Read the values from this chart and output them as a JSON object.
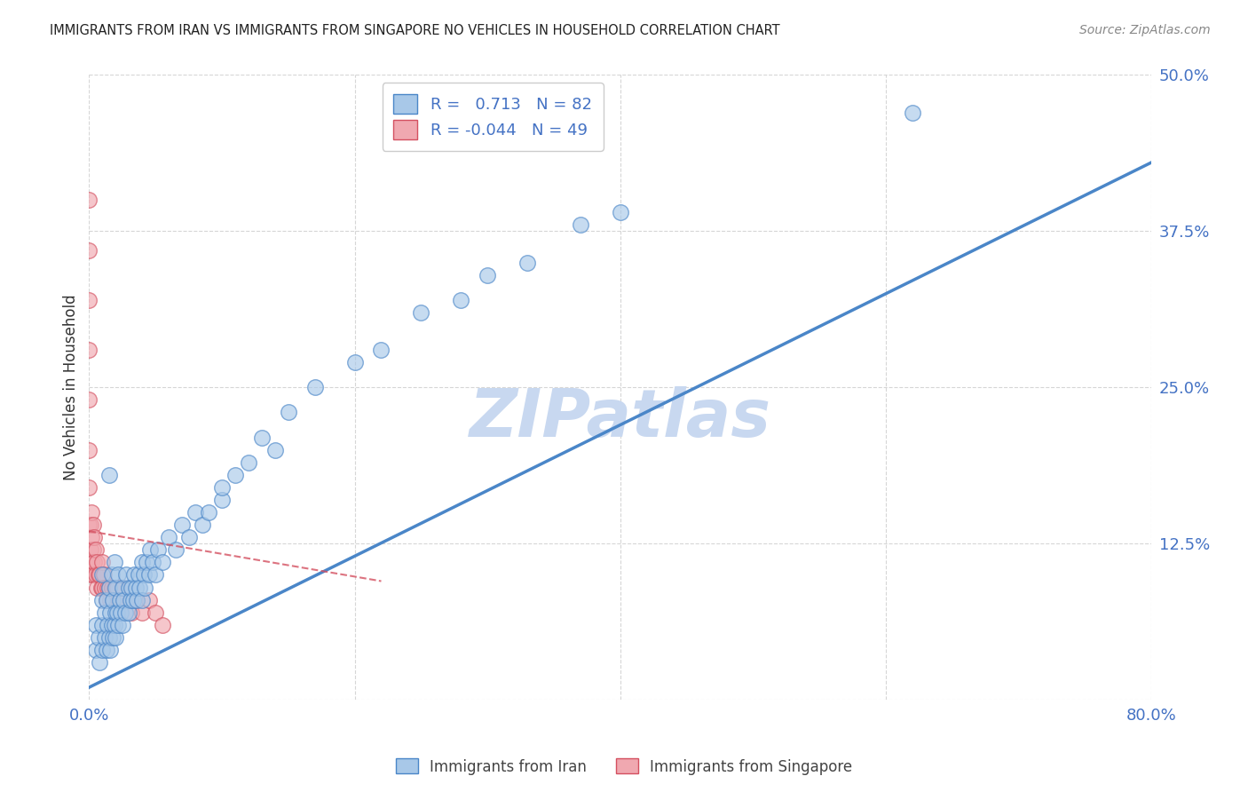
{
  "title": "IMMIGRANTS FROM IRAN VS IMMIGRANTS FROM SINGAPORE NO VEHICLES IN HOUSEHOLD CORRELATION CHART",
  "source": "Source: ZipAtlas.com",
  "tick_color": "#4472c4",
  "ylabel": "No Vehicles in Household",
  "xlim": [
    0.0,
    0.8
  ],
  "ylim": [
    0.0,
    0.5
  ],
  "xticks": [
    0.0,
    0.2,
    0.4,
    0.6,
    0.8
  ],
  "yticks": [
    0.0,
    0.125,
    0.25,
    0.375,
    0.5
  ],
  "xtick_labels": [
    "0.0%",
    "",
    "",
    "",
    "80.0%"
  ],
  "ytick_labels": [
    "",
    "12.5%",
    "25.0%",
    "37.5%",
    "50.0%"
  ],
  "iran_color": "#4a86c8",
  "iran_color_fill": "#a8c8e8",
  "singapore_color": "#d45060",
  "singapore_color_fill": "#f0a8b0",
  "iran_R": 0.713,
  "iran_N": 82,
  "singapore_R": -0.044,
  "singapore_N": 49,
  "legend_label_iran": "Immigrants from Iran",
  "legend_label_singapore": "Immigrants from Singapore",
  "watermark": "ZIPatlas",
  "watermark_color": "#c8d8f0",
  "iran_line_x": [
    0.0,
    0.8
  ],
  "iran_line_y": [
    0.01,
    0.43
  ],
  "singapore_line_x": [
    0.0,
    0.22
  ],
  "singapore_line_y": [
    0.135,
    0.095
  ],
  "iran_scatter_x": [
    0.005,
    0.005,
    0.007,
    0.008,
    0.01,
    0.01,
    0.01,
    0.01,
    0.012,
    0.012,
    0.013,
    0.013,
    0.014,
    0.015,
    0.015,
    0.016,
    0.016,
    0.017,
    0.017,
    0.018,
    0.018,
    0.019,
    0.019,
    0.02,
    0.02,
    0.02,
    0.021,
    0.022,
    0.022,
    0.023,
    0.024,
    0.025,
    0.025,
    0.026,
    0.027,
    0.028,
    0.03,
    0.03,
    0.031,
    0.032,
    0.033,
    0.034,
    0.035,
    0.036,
    0.037,
    0.038,
    0.04,
    0.04,
    0.041,
    0.042,
    0.043,
    0.045,
    0.046,
    0.048,
    0.05,
    0.052,
    0.055,
    0.06,
    0.065,
    0.07,
    0.075,
    0.08,
    0.085,
    0.09,
    0.1,
    0.11,
    0.12,
    0.13,
    0.15,
    0.17,
    0.2,
    0.22,
    0.25,
    0.28,
    0.3,
    0.33,
    0.37,
    0.4,
    0.015,
    0.14,
    0.62,
    0.1
  ],
  "iran_scatter_y": [
    0.04,
    0.06,
    0.05,
    0.03,
    0.04,
    0.06,
    0.08,
    0.1,
    0.05,
    0.07,
    0.04,
    0.08,
    0.06,
    0.05,
    0.09,
    0.04,
    0.07,
    0.06,
    0.1,
    0.05,
    0.08,
    0.06,
    0.11,
    0.05,
    0.07,
    0.09,
    0.07,
    0.06,
    0.1,
    0.08,
    0.07,
    0.06,
    0.09,
    0.08,
    0.07,
    0.1,
    0.07,
    0.09,
    0.08,
    0.09,
    0.08,
    0.1,
    0.09,
    0.08,
    0.1,
    0.09,
    0.08,
    0.11,
    0.1,
    0.09,
    0.11,
    0.1,
    0.12,
    0.11,
    0.1,
    0.12,
    0.11,
    0.13,
    0.12,
    0.14,
    0.13,
    0.15,
    0.14,
    0.15,
    0.16,
    0.18,
    0.19,
    0.21,
    0.23,
    0.25,
    0.27,
    0.28,
    0.31,
    0.32,
    0.34,
    0.35,
    0.38,
    0.39,
    0.18,
    0.2,
    0.47,
    0.17
  ],
  "singapore_scatter_x": [
    0.0,
    0.0,
    0.0,
    0.0,
    0.0,
    0.0,
    0.0,
    0.0,
    0.0,
    0.001,
    0.001,
    0.001,
    0.002,
    0.002,
    0.002,
    0.003,
    0.003,
    0.003,
    0.004,
    0.004,
    0.005,
    0.005,
    0.006,
    0.006,
    0.007,
    0.008,
    0.009,
    0.01,
    0.01,
    0.011,
    0.012,
    0.013,
    0.014,
    0.015,
    0.016,
    0.017,
    0.018,
    0.019,
    0.02,
    0.021,
    0.022,
    0.025,
    0.028,
    0.032,
    0.036,
    0.04,
    0.045,
    0.05,
    0.055
  ],
  "singapore_scatter_y": [
    0.4,
    0.36,
    0.32,
    0.28,
    0.24,
    0.2,
    0.17,
    0.14,
    0.11,
    0.14,
    0.12,
    0.1,
    0.15,
    0.13,
    0.11,
    0.14,
    0.12,
    0.1,
    0.13,
    0.11,
    0.12,
    0.1,
    0.11,
    0.09,
    0.1,
    0.1,
    0.09,
    0.11,
    0.09,
    0.1,
    0.09,
    0.08,
    0.09,
    0.09,
    0.08,
    0.09,
    0.08,
    0.09,
    0.08,
    0.09,
    0.08,
    0.09,
    0.08,
    0.07,
    0.08,
    0.07,
    0.08,
    0.07,
    0.06
  ]
}
